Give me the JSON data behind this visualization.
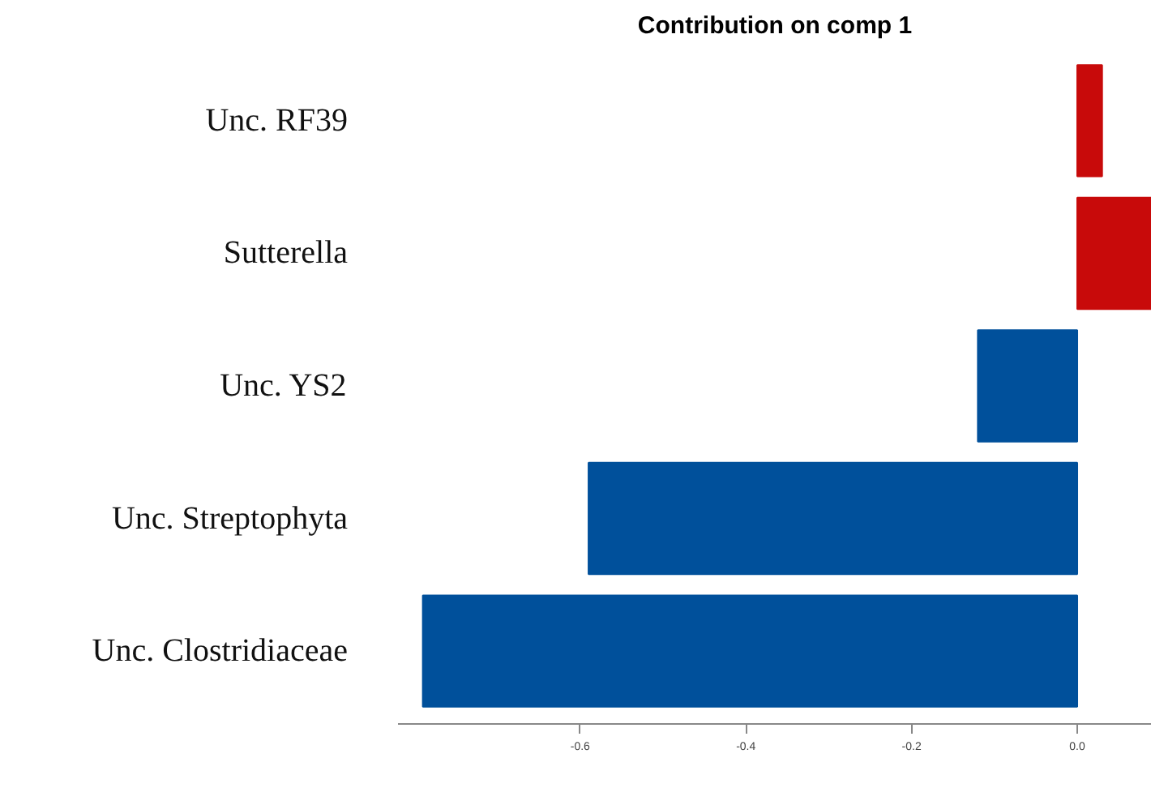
{
  "chart_data": {
    "type": "bar",
    "orientation": "horizontal",
    "title": "Contribution on comp 1",
    "categories": [
      "Unc. RF39",
      "Sutterella",
      "Unc. YS2",
      "Unc. Streptophyta",
      "Unc. Clostridiaceae"
    ],
    "values": [
      0.03,
      0.09,
      -0.12,
      -0.59,
      -0.79
    ],
    "colors": [
      "#c80a0a",
      "#c80a0a",
      "#00509b",
      "#00509b",
      "#00509b"
    ],
    "xlim": [
      -0.82,
      0.09
    ],
    "xticks": [
      {
        "value": -0.6,
        "label": "-0.6"
      },
      {
        "value": -0.4,
        "label": "-0.4"
      },
      {
        "value": -0.2,
        "label": "-0.2"
      },
      {
        "value": 0,
        "label": "0.0"
      }
    ],
    "grid": false
  }
}
